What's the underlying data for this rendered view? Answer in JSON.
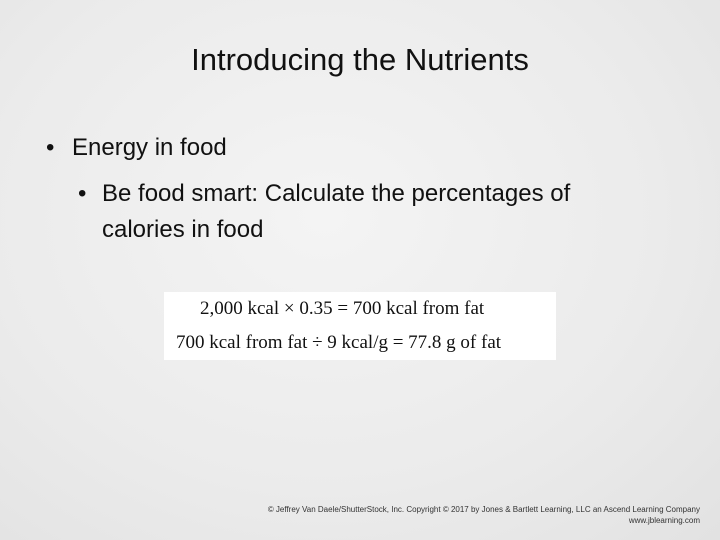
{
  "title": "Introducing the Nutrients",
  "bullets": [
    {
      "text": "Energy in food",
      "children": [
        {
          "text": "Be food smart: Calculate the percentages of calories in food"
        }
      ]
    }
  ],
  "equations": [
    "2,000 kcal × 0.35 = 700 kcal from fat",
    "700 kcal from fat ÷ 9 kcal/g = 77.8 g of fat"
  ],
  "footer": [
    "© Jeffrey Van Daele/ShutterStock, Inc. Copyright © 2017 by Jones & Bartlett Learning, LLC an Ascend Learning Company",
    "www.jblearning.com"
  ]
}
